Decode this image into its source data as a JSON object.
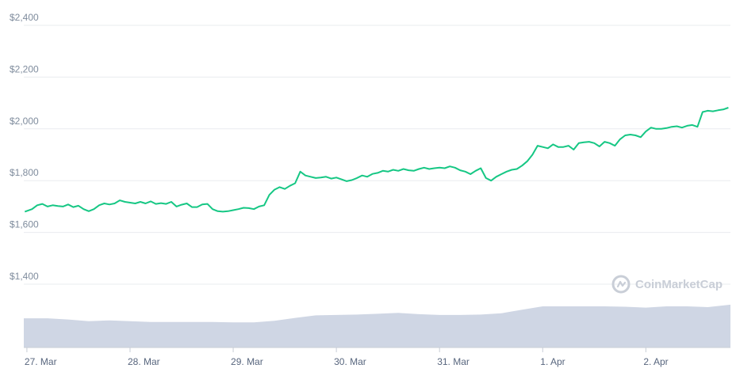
{
  "colors": {
    "price_line": "#16c784",
    "volume_fill": "#cfd6e4",
    "watermark": "#c9ced7"
  },
  "watermark": {
    "text": "CoinMarketCap",
    "icon": "coinmarketcap-logo-icon"
  },
  "chart_data": {
    "type": "line",
    "title": "",
    "xlabel": "",
    "ylabel": "",
    "ylim": [
      1400,
      2400
    ],
    "yticks": [
      "$1,400",
      "$1,600",
      "$1,800",
      "$2,000",
      "$2,200",
      "$2,400"
    ],
    "ytick_values": [
      1400,
      1600,
      1800,
      2000,
      2200,
      2400
    ],
    "xticks": [
      "27. Mar",
      "28. Mar",
      "29. Mar",
      "30. Mar",
      "31. Mar",
      "1. Apr",
      "2. Apr"
    ],
    "xtick_values": [
      0,
      1,
      2,
      3,
      4,
      5,
      6
    ],
    "xlim": [
      -0.03,
      6.82
    ],
    "grid": true,
    "series": [
      {
        "x": [
          -0.02,
          0.05,
          0.1,
          0.15,
          0.2,
          0.25,
          0.3,
          0.35,
          0.4,
          0.45,
          0.5,
          0.55,
          0.6,
          0.65,
          0.7,
          0.75,
          0.8,
          0.85,
          0.9,
          0.95,
          1.0,
          1.05,
          1.1,
          1.15,
          1.2,
          1.25,
          1.3,
          1.35,
          1.4,
          1.45,
          1.5,
          1.55,
          1.6,
          1.65,
          1.7,
          1.75,
          1.8,
          1.85,
          1.9,
          1.95,
          2.0,
          2.05,
          2.1,
          2.15,
          2.2,
          2.25,
          2.3,
          2.35,
          2.4,
          2.45,
          2.5,
          2.55,
          2.6,
          2.65,
          2.7,
          2.75,
          2.8,
          2.85,
          2.9,
          2.95,
          3.0,
          3.05,
          3.1,
          3.15,
          3.2,
          3.25,
          3.3,
          3.35,
          3.4,
          3.45,
          3.5,
          3.55,
          3.6,
          3.65,
          3.7,
          3.75,
          3.8,
          3.85,
          3.9,
          3.95,
          4.0,
          4.05,
          4.1,
          4.15,
          4.2,
          4.25,
          4.3,
          4.35,
          4.4,
          4.45,
          4.5,
          4.55,
          4.6,
          4.65,
          4.7,
          4.75,
          4.8,
          4.85,
          4.9,
          4.95,
          5.0,
          5.05,
          5.1,
          5.15,
          5.2,
          5.25,
          5.3,
          5.35,
          5.4,
          5.45,
          5.5,
          5.55,
          5.6,
          5.65,
          5.7,
          5.75,
          5.8,
          5.85,
          5.9,
          5.95,
          6.0,
          6.05,
          6.1,
          6.15,
          6.2,
          6.25,
          6.3,
          6.35,
          6.4,
          6.45,
          6.5,
          6.55,
          6.6,
          6.65,
          6.7,
          6.75,
          6.8
        ],
        "values": [
          1680,
          1690,
          1705,
          1710,
          1700,
          1705,
          1702,
          1700,
          1708,
          1698,
          1703,
          1690,
          1682,
          1690,
          1705,
          1712,
          1708,
          1712,
          1724,
          1718,
          1715,
          1712,
          1718,
          1712,
          1720,
          1710,
          1713,
          1710,
          1718,
          1700,
          1707,
          1712,
          1698,
          1698,
          1708,
          1710,
          1690,
          1682,
          1680,
          1682,
          1686,
          1690,
          1695,
          1694,
          1690,
          1700,
          1705,
          1745,
          1765,
          1775,
          1768,
          1780,
          1790,
          1835,
          1820,
          1815,
          1810,
          1812,
          1815,
          1808,
          1812,
          1805,
          1798,
          1802,
          1810,
          1820,
          1815,
          1826,
          1830,
          1838,
          1835,
          1842,
          1838,
          1845,
          1840,
          1838,
          1845,
          1850,
          1845,
          1848,
          1850,
          1848,
          1855,
          1850,
          1840,
          1835,
          1825,
          1838,
          1848,
          1810,
          1800,
          1815,
          1825,
          1835,
          1842,
          1845,
          1858,
          1875,
          1900,
          1935,
          1930,
          1925,
          1940,
          1930,
          1930,
          1935,
          1920,
          1945,
          1948,
          1950,
          1945,
          1932,
          1950,
          1945,
          1935,
          1960,
          1975,
          1978,
          1975,
          1968,
          1990,
          2005,
          2000,
          2000,
          2003,
          2008,
          2010,
          2005,
          2012,
          2015,
          2008,
          2065,
          2070,
          2068,
          2072,
          2075,
          2082
        ]
      }
    ],
    "volume": {
      "x": [
        -0.03,
        0.2,
        0.4,
        0.6,
        0.8,
        1.0,
        1.2,
        1.4,
        1.6,
        1.8,
        2.0,
        2.2,
        2.4,
        2.6,
        2.8,
        3.0,
        3.2,
        3.4,
        3.6,
        3.8,
        4.0,
        4.2,
        4.4,
        4.6,
        4.8,
        5.0,
        5.2,
        5.4,
        5.6,
        5.8,
        6.0,
        6.2,
        6.4,
        6.6,
        6.82
      ],
      "values": [
        0.71,
        0.71,
        0.68,
        0.64,
        0.66,
        0.64,
        0.62,
        0.62,
        0.62,
        0.62,
        0.61,
        0.61,
        0.65,
        0.72,
        0.78,
        0.79,
        0.8,
        0.82,
        0.84,
        0.81,
        0.79,
        0.79,
        0.8,
        0.83,
        0.92,
        1.0,
        1.0,
        1.0,
        1.0,
        0.99,
        0.97,
        1.0,
        1.0,
        0.98,
        1.04
      ]
    }
  }
}
